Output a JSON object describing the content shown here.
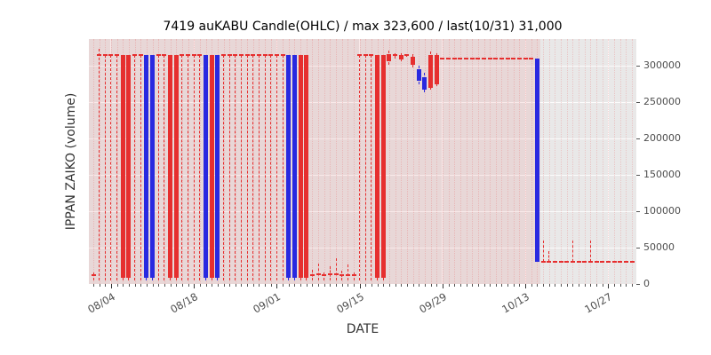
{
  "chart_data": {
    "type": "candlestick",
    "title": "7419 auKABU Candle(OHLC) / max 323,600 / last(10/31) 31,000",
    "xlabel": "DATE",
    "ylabel": "IPPAN ZAIKO (volume)",
    "x_ticks": [
      "08/04",
      "08/18",
      "09/01",
      "09/15",
      "09/29",
      "10/13",
      "10/27"
    ],
    "x_tick_days": [
      3,
      17,
      31,
      45,
      59,
      73,
      87
    ],
    "y_ticks": [
      0,
      50000,
      100000,
      150000,
      200000,
      250000,
      300000
    ],
    "ylim": [
      0,
      337000
    ],
    "max_value": 323600,
    "last_date": "10/31",
    "last_value": 31000,
    "legend": "none",
    "grid": true,
    "colors": {
      "red": "#e62e2e",
      "blue": "#2929e0",
      "band": "rgba(230,70,70,0.10)",
      "day_grid": "rgba(230,70,70,0.22)",
      "plot_bg": "#e9e8e8"
    },
    "shaded_span": {
      "from_day": 0,
      "to_day": 75
    },
    "days_format": [
      "date",
      "open",
      "high",
      "low",
      "close",
      "color(r|b)"
    ],
    "days": [
      [
        "08/01",
        12000,
        16000,
        5000,
        12000,
        "r"
      ],
      [
        "08/02",
        315600,
        323600,
        5000,
        315600,
        "r"
      ],
      [
        "08/03",
        315600,
        315600,
        5000,
        315600,
        "r"
      ],
      [
        "08/04",
        315600,
        315600,
        5000,
        315600,
        "r"
      ],
      [
        "08/05",
        315600,
        315600,
        5000,
        315600,
        "r"
      ],
      [
        "08/06",
        315600,
        315600,
        5000,
        8000,
        "r"
      ],
      [
        "08/07",
        315600,
        315600,
        5000,
        8000,
        "r"
      ],
      [
        "08/08",
        315600,
        315600,
        5000,
        315600,
        "r"
      ],
      [
        "08/09",
        315600,
        315600,
        5000,
        315600,
        "r"
      ],
      [
        "08/10",
        8000,
        315600,
        5000,
        315600,
        "b"
      ],
      [
        "08/11",
        8000,
        315600,
        5000,
        315600,
        "b"
      ],
      [
        "08/12",
        315600,
        315600,
        5000,
        315600,
        "r"
      ],
      [
        "08/13",
        315600,
        315600,
        5000,
        315600,
        "r"
      ],
      [
        "08/14",
        315600,
        315600,
        5000,
        8000,
        "r"
      ],
      [
        "08/15",
        315600,
        315600,
        5000,
        8000,
        "r"
      ],
      [
        "08/16",
        315600,
        315600,
        5000,
        315600,
        "r"
      ],
      [
        "08/17",
        315600,
        315600,
        5000,
        315600,
        "r"
      ],
      [
        "08/18",
        315600,
        315600,
        5000,
        315600,
        "r"
      ],
      [
        "08/19",
        315600,
        315600,
        5000,
        315600,
        "r"
      ],
      [
        "08/20",
        8000,
        315600,
        5000,
        315600,
        "b"
      ],
      [
        "08/21",
        315600,
        315600,
        5000,
        8000,
        "r"
      ],
      [
        "08/22",
        8000,
        315600,
        5000,
        315600,
        "b"
      ],
      [
        "08/23",
        315600,
        315600,
        5000,
        315600,
        "r"
      ],
      [
        "08/24",
        315600,
        315600,
        5000,
        315600,
        "r"
      ],
      [
        "08/25",
        315600,
        315600,
        5000,
        315600,
        "r"
      ],
      [
        "08/26",
        315600,
        315600,
        5000,
        315600,
        "r"
      ],
      [
        "08/27",
        315600,
        315600,
        5000,
        315600,
        "r"
      ],
      [
        "08/28",
        315600,
        315600,
        5000,
        315600,
        "r"
      ],
      [
        "08/29",
        315600,
        315600,
        5000,
        315600,
        "r"
      ],
      [
        "08/30",
        315600,
        315600,
        5000,
        315600,
        "r"
      ],
      [
        "08/31",
        315600,
        315600,
        5000,
        315600,
        "r"
      ],
      [
        "09/01",
        315600,
        315600,
        5000,
        315600,
        "r"
      ],
      [
        "09/02",
        315600,
        315600,
        5000,
        315600,
        "r"
      ],
      [
        "09/03",
        8000,
        315600,
        5000,
        315600,
        "b"
      ],
      [
        "09/04",
        8000,
        315600,
        5000,
        315600,
        "b"
      ],
      [
        "09/05",
        315600,
        315600,
        5000,
        8000,
        "r"
      ],
      [
        "09/06",
        315600,
        315600,
        5000,
        8000,
        "r"
      ],
      [
        "09/07",
        12000,
        20000,
        5000,
        12000,
        "r"
      ],
      [
        "09/08",
        12000,
        28000,
        5000,
        14000,
        "r"
      ],
      [
        "09/09",
        12000,
        16000,
        5000,
        12000,
        "r"
      ],
      [
        "09/10",
        12000,
        24000,
        5000,
        13000,
        "r"
      ],
      [
        "09/11",
        13000,
        36000,
        5000,
        13000,
        "r"
      ],
      [
        "09/12",
        12000,
        18000,
        5000,
        12000,
        "r"
      ],
      [
        "09/13",
        12000,
        27000,
        5000,
        12000,
        "r"
      ],
      [
        "09/14",
        12000,
        16000,
        5000,
        12000,
        "r"
      ],
      [
        "09/15",
        315600,
        315600,
        5000,
        315600,
        "r"
      ],
      [
        "09/16",
        315600,
        315600,
        5000,
        315600,
        "r"
      ],
      [
        "09/17",
        315600,
        315600,
        5000,
        315600,
        "r"
      ],
      [
        "09/18",
        315600,
        315600,
        5000,
        8000,
        "r"
      ],
      [
        "09/19",
        315600,
        315600,
        5000,
        8000,
        "r"
      ],
      [
        "09/20",
        316000,
        321000,
        302000,
        306000,
        "r"
      ],
      [
        "09/21",
        315600,
        318000,
        310000,
        315600,
        "r"
      ],
      [
        "09/22",
        315000,
        317000,
        306000,
        309000,
        "r"
      ],
      [
        "09/23",
        315600,
        315600,
        312000,
        315600,
        "r"
      ],
      [
        "09/24",
        312000,
        316000,
        298000,
        302000,
        "r"
      ],
      [
        "09/25",
        295000,
        300000,
        275000,
        280000,
        "b"
      ],
      [
        "09/26",
        284000,
        290000,
        264000,
        268000,
        "b"
      ],
      [
        "09/27",
        270000,
        320000,
        268000,
        315600,
        "r"
      ],
      [
        "09/28",
        275000,
        318000,
        272000,
        315600,
        "r"
      ],
      [
        "09/29",
        310000,
        310000,
        310000,
        310000,
        "r"
      ],
      [
        "09/30",
        310000,
        310000,
        310000,
        310000,
        "r"
      ],
      [
        "10/01",
        310000,
        310000,
        310000,
        310000,
        "r"
      ],
      [
        "10/02",
        310000,
        310000,
        310000,
        310000,
        "r"
      ],
      [
        "10/03",
        310000,
        310000,
        310000,
        310000,
        "r"
      ],
      [
        "10/04",
        310000,
        310000,
        310000,
        310000,
        "r"
      ],
      [
        "10/05",
        310000,
        310000,
        310000,
        310000,
        "r"
      ],
      [
        "10/06",
        310000,
        310000,
        310000,
        310000,
        "r"
      ],
      [
        "10/07",
        310000,
        310000,
        310000,
        310000,
        "r"
      ],
      [
        "10/08",
        310000,
        310000,
        310000,
        310000,
        "r"
      ],
      [
        "10/09",
        310000,
        310000,
        310000,
        310000,
        "r"
      ],
      [
        "10/10",
        310000,
        310000,
        310000,
        310000,
        "r"
      ],
      [
        "10/11",
        310000,
        310000,
        310000,
        310000,
        "r"
      ],
      [
        "10/12",
        310000,
        310000,
        310000,
        310000,
        "r"
      ],
      [
        "10/13",
        310000,
        310000,
        310000,
        310000,
        "r"
      ],
      [
        "10/14",
        310000,
        310000,
        310000,
        310000,
        "r"
      ],
      [
        "10/15",
        310000,
        310000,
        31000,
        31000,
        "b"
      ],
      [
        "10/16",
        31000,
        60000,
        31000,
        31000,
        "r"
      ],
      [
        "10/17",
        31000,
        45000,
        31000,
        31000,
        "r"
      ],
      [
        "10/18",
        31000,
        31000,
        31000,
        31000,
        "r"
      ],
      [
        "10/19",
        31000,
        31000,
        31000,
        31000,
        "r"
      ],
      [
        "10/20",
        31000,
        31000,
        31000,
        31000,
        "r"
      ],
      [
        "10/21",
        31000,
        60000,
        31000,
        31000,
        "r"
      ],
      [
        "10/22",
        31000,
        31000,
        31000,
        31000,
        "r"
      ],
      [
        "10/23",
        31000,
        31000,
        31000,
        31000,
        "r"
      ],
      [
        "10/24",
        31000,
        60000,
        31000,
        31000,
        "r"
      ],
      [
        "10/25",
        31000,
        31000,
        31000,
        31000,
        "r"
      ],
      [
        "10/26",
        31000,
        31000,
        31000,
        31000,
        "r"
      ],
      [
        "10/27",
        31000,
        31000,
        31000,
        31000,
        "r"
      ],
      [
        "10/28",
        31000,
        31000,
        31000,
        31000,
        "r"
      ],
      [
        "10/29",
        31000,
        31000,
        31000,
        31000,
        "r"
      ],
      [
        "10/30",
        31000,
        31000,
        31000,
        31000,
        "r"
      ],
      [
        "10/31",
        31000,
        31000,
        31000,
        31000,
        "r"
      ]
    ]
  }
}
